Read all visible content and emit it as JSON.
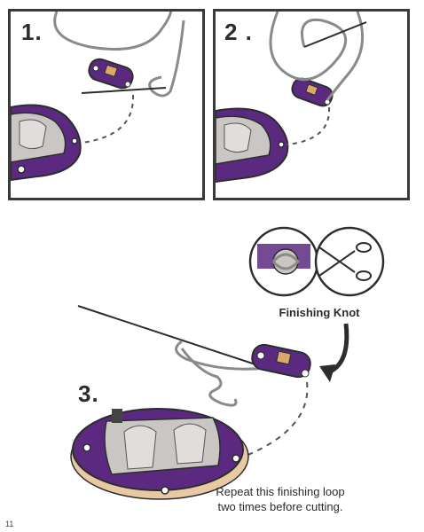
{
  "steps": [
    {
      "label": "1."
    },
    {
      "label": "2 ."
    },
    {
      "label": "3."
    }
  ],
  "knot_caption": "Finishing Knot",
  "repeat_caption": {
    "line1": "Repeat this finishing loop",
    "line2": "two times before cutting."
  },
  "page_number": "11",
  "colors": {
    "board": "#5b2a80",
    "board_dark": "#3e1b5c",
    "battery": "#c9c6c4",
    "thread": "#8a8a8a",
    "outline": "#3a3a3a",
    "led": "#d9a86b",
    "base": "#e9c9a4"
  }
}
